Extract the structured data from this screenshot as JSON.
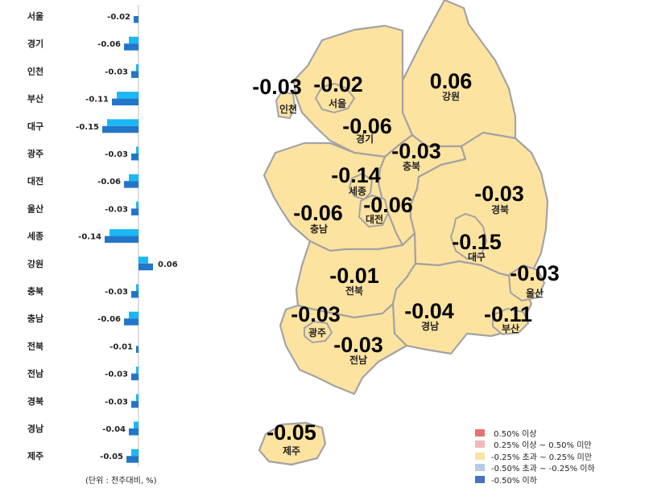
{
  "chart_data": [
    {
      "type": "bar",
      "categories": [
        "서울",
        "경기",
        "인천",
        "부산",
        "대구",
        "광주",
        "대전",
        "울산",
        "세종",
        "강원",
        "충북",
        "충남",
        "전북",
        "전남",
        "경북",
        "경남",
        "제주"
      ],
      "values": [
        -0.02,
        -0.06,
        -0.03,
        -0.11,
        -0.15,
        -0.03,
        -0.06,
        -0.03,
        -0.14,
        0.06,
        -0.03,
        -0.06,
        -0.01,
        -0.03,
        -0.03,
        -0.04,
        -0.05
      ],
      "value_labels": [
        "-0.02",
        "-0.06",
        "-0.03",
        "-0.11",
        "-0.15",
        "-0.03",
        "-0.06",
        "-0.03",
        "-0.14",
        "0.06",
        "-0.03",
        "-0.06",
        "-0.01",
        "-0.03",
        "-0.03",
        "-0.04",
        "-0.05"
      ],
      "unit_note": "(단위 : 전주대비, %)",
      "colors": {
        "prev_bar": "#1ab8f5",
        "curr_bar": "#2276c9"
      }
    },
    {
      "type": "map",
      "regions": [
        {
          "name": "인천",
          "value": "-0.03"
        },
        {
          "name": "서울",
          "value": "-0.02"
        },
        {
          "name": "강원",
          "value": "0.06"
        },
        {
          "name": "경기",
          "value": "-0.06"
        },
        {
          "name": "충북",
          "value": "-0.03"
        },
        {
          "name": "세종",
          "value": "-0.14"
        },
        {
          "name": "대전",
          "value": "-0.06"
        },
        {
          "name": "충남",
          "value": "-0.06"
        },
        {
          "name": "경북",
          "value": "-0.03"
        },
        {
          "name": "대구",
          "value": "-0.15"
        },
        {
          "name": "울산",
          "value": "-0.03"
        },
        {
          "name": "전북",
          "value": "-0.01"
        },
        {
          "name": "광주",
          "value": "-0.03"
        },
        {
          "name": "전남",
          "value": "-0.03"
        },
        {
          "name": "경남",
          "value": "-0.04"
        },
        {
          "name": "부산",
          "value": "-0.11"
        },
        {
          "name": "제주",
          "value": "-0.05"
        }
      ],
      "legend": [
        {
          "label": " 0.50% 이상",
          "color": "#e57373"
        },
        {
          "label": " 0.25% 이상 ~ 0.50% 미만",
          "color": "#f5b7b5"
        },
        {
          "label": "-0.25% 초과 ~ 0.25% 미만",
          "color": "#fde3a0"
        },
        {
          "label": "-0.50% 초과 ~ -0.25% 이하",
          "color": "#b3cde6"
        },
        {
          "label": "-0.50% 이하",
          "color": "#4472c4"
        }
      ]
    }
  ]
}
